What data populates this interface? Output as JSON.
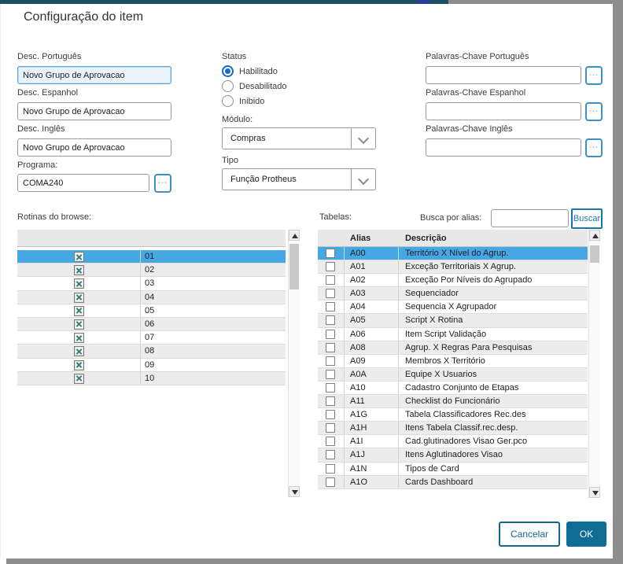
{
  "dialog": {
    "title": "Configuração do item",
    "fields": {
      "desc_portugues": {
        "label": "Desc. Português",
        "value": "Novo Grupo de Aprovacao"
      },
      "desc_espanhol": {
        "label": "Desc. Espanhol",
        "value": "Novo Grupo de Aprovacao"
      },
      "desc_ingles": {
        "label": "Desc. Inglês",
        "value": "Novo Grupo de Aprovacao"
      },
      "programa": {
        "label": "Programa:",
        "value": "COMA240",
        "browse_button": "..."
      }
    },
    "status": {
      "label": "Status",
      "options": [
        {
          "label": "Habilitado",
          "selected": true
        },
        {
          "label": "Desabilitado",
          "selected": false
        },
        {
          "label": "Inibido",
          "selected": false
        }
      ]
    },
    "modulo": {
      "label": "Módulo:",
      "value": "Compras"
    },
    "tipo": {
      "label": "Tipo",
      "value": "Função Protheus"
    },
    "palavras_chave": {
      "portugues": {
        "label": "Palavras-Chave Português",
        "value": "",
        "browse_button": "..."
      },
      "espanhol": {
        "label": "Palavras-Chave Espanhol",
        "value": "",
        "browse_button": "..."
      },
      "ingles": {
        "label": "Palavras-Chave Inglês",
        "value": "",
        "browse_button": "..."
      }
    },
    "rotinas": {
      "label": "Rotinas do browse:",
      "rows": [
        {
          "num": "01",
          "checked": true,
          "selected": true
        },
        {
          "num": "02",
          "checked": true,
          "selected": false
        },
        {
          "num": "03",
          "checked": true,
          "selected": false
        },
        {
          "num": "04",
          "checked": true,
          "selected": false
        },
        {
          "num": "05",
          "checked": true,
          "selected": false
        },
        {
          "num": "06",
          "checked": true,
          "selected": false
        },
        {
          "num": "07",
          "checked": true,
          "selected": false
        },
        {
          "num": "08",
          "checked": true,
          "selected": false
        },
        {
          "num": "09",
          "checked": true,
          "selected": false
        },
        {
          "num": "10",
          "checked": true,
          "selected": false
        }
      ]
    },
    "tabelas": {
      "label": "Tabelas:",
      "busca_label": "Busca por alias:",
      "busca_value": "",
      "buscar_button": "Buscar",
      "columns": {
        "alias": "Alias",
        "descricao": "Descrição"
      },
      "rows": [
        {
          "alias": "A00",
          "descricao": "Território X Nível do Agrup.",
          "checked": false,
          "selected": true
        },
        {
          "alias": "A01",
          "descricao": "Exceção Territoriais X Agrup.",
          "checked": false,
          "selected": false
        },
        {
          "alias": "A02",
          "descricao": "Exceção Por Níveis do Agrupado",
          "checked": false,
          "selected": false
        },
        {
          "alias": "A03",
          "descricao": "Sequenciador",
          "checked": false,
          "selected": false
        },
        {
          "alias": "A04",
          "descricao": "Sequencia X Agrupador",
          "checked": false,
          "selected": false
        },
        {
          "alias": "A05",
          "descricao": "Script X Rotina",
          "checked": false,
          "selected": false
        },
        {
          "alias": "A06",
          "descricao": "Item Script Validação",
          "checked": false,
          "selected": false
        },
        {
          "alias": "A08",
          "descricao": "Agrup. X Regras Para Pesquisas",
          "checked": false,
          "selected": false
        },
        {
          "alias": "A09",
          "descricao": "Membros X Território",
          "checked": false,
          "selected": false
        },
        {
          "alias": "A0A",
          "descricao": "Equipe X Usuarios",
          "checked": false,
          "selected": false
        },
        {
          "alias": "A10",
          "descricao": "Cadastro Conjunto de Etapas",
          "checked": false,
          "selected": false
        },
        {
          "alias": "A11",
          "descricao": "Checklist do Funcionário",
          "checked": false,
          "selected": false
        },
        {
          "alias": "A1G",
          "descricao": "Tabela Classificadores Rec.des",
          "checked": false,
          "selected": false
        },
        {
          "alias": "A1H",
          "descricao": "Itens Tabela Classif.rec.desp.",
          "checked": false,
          "selected": false
        },
        {
          "alias": "A1I",
          "descricao": "Cad.glutinadores Visao Ger.pco",
          "checked": false,
          "selected": false
        },
        {
          "alias": "A1J",
          "descricao": "Itens Aglutinadores Visao",
          "checked": false,
          "selected": false
        },
        {
          "alias": "A1N",
          "descricao": "Tipos de Card",
          "checked": false,
          "selected": false
        },
        {
          "alias": "A1O",
          "descricao": "Cards Dashboard",
          "checked": false,
          "selected": false
        }
      ]
    },
    "footer": {
      "cancel": "Cancelar",
      "ok": "OK"
    },
    "colors": {
      "accent": "#0f6c94",
      "selection": "#45a7e3",
      "radio_selected": "#1568cf",
      "focus_border": "#5ea3d4",
      "check_x": "#2f7e74",
      "chrome_teal": "#1b4f63",
      "chrome_navy": "#2b3a92",
      "chrome_gray": "#8d8d8d"
    }
  }
}
